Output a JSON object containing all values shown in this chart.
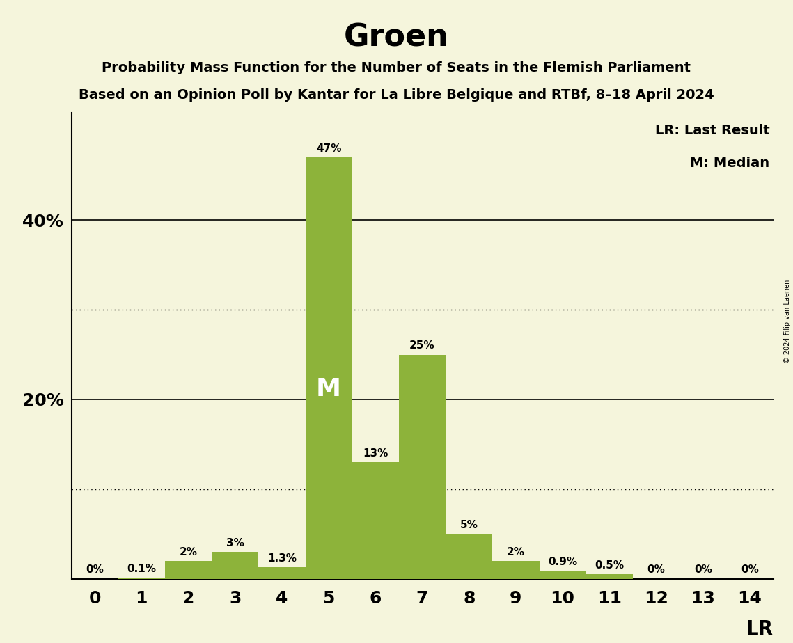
{
  "title": "Groen",
  "subtitle1": "Probability Mass Function for the Number of Seats in the Flemish Parliament",
  "subtitle2": "Based on an Opinion Poll by Kantar for La Libre Belgique and RTBf, 8–18 April 2024",
  "copyright": "© 2024 Filip van Laenen",
  "categories": [
    0,
    1,
    2,
    3,
    4,
    5,
    6,
    7,
    8,
    9,
    10,
    11,
    12,
    13,
    14
  ],
  "values": [
    0.0,
    0.1,
    2.0,
    3.0,
    1.3,
    47.0,
    13.0,
    25.0,
    5.0,
    2.0,
    0.9,
    0.5,
    0.0,
    0.0,
    0.0
  ],
  "labels": [
    "0%",
    "0.1%",
    "2%",
    "3%",
    "1.3%",
    "47%",
    "13%",
    "25%",
    "5%",
    "2%",
    "0.9%",
    "0.5%",
    "0%",
    "0%",
    "0%"
  ],
  "bar_color": "#8db33a",
  "background_color": "#f5f5dc",
  "median_seat": 5,
  "dotted_lines": [
    10.0,
    30.0
  ],
  "solid_lines": [
    20.0,
    40.0
  ],
  "ylim": [
    0,
    52
  ],
  "legend_lr": "LR: Last Result",
  "legend_m": "M: Median"
}
